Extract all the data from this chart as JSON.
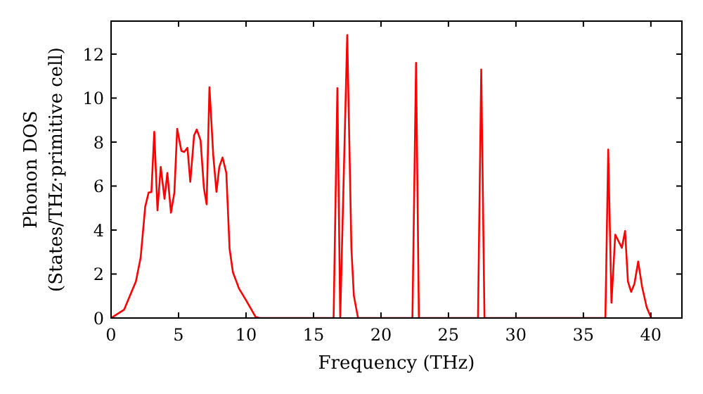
{
  "chart_data": {
    "type": "line",
    "xlabel": "Frequency (THz)",
    "ylabel": "Phonon DOS\n(States/THz·primitive cell)",
    "xlim": [
      0,
      42.3
    ],
    "ylim": [
      0,
      13.5
    ],
    "xticks": [
      0,
      5,
      10,
      15,
      20,
      25,
      30,
      35,
      40
    ],
    "yticks": [
      0,
      2,
      4,
      6,
      8,
      10,
      12
    ],
    "grid": false,
    "marker": "none",
    "line_style": "solid",
    "series": [
      {
        "color": "#ff0000",
        "x": [
          0,
          0.97,
          1.84,
          2.19,
          2.53,
          2.78,
          2.99,
          3.2,
          3.44,
          3.68,
          3.96,
          4.17,
          4.44,
          4.69,
          4.9,
          5.21,
          5.42,
          5.66,
          5.87,
          6.15,
          6.35,
          6.63,
          6.88,
          7.08,
          7.29,
          7.57,
          7.81,
          8.02,
          8.26,
          8.54,
          8.78,
          9.03,
          9.48,
          10,
          10.7,
          11,
          16.49,
          16.77,
          16.98,
          17.5,
          17.81,
          17.99,
          18.3,
          22.33,
          22.6,
          22.81,
          27.19,
          27.43,
          27.67,
          36.63,
          36.84,
          37.08,
          37.36,
          37.85,
          38.09,
          38.3,
          38.54,
          38.78,
          39.06,
          39.34,
          39.69,
          40.03
        ],
        "values": [
          0,
          0.38,
          1.66,
          2.74,
          5.06,
          5.7,
          5.73,
          8.47,
          4.9,
          6.87,
          5.42,
          6.6,
          4.79,
          5.7,
          8.6,
          7.6,
          7.55,
          7.74,
          6.19,
          8.3,
          8.57,
          8.08,
          5.91,
          5.17,
          10.49,
          7.4,
          5.74,
          6.87,
          7.3,
          6.6,
          3.15,
          2.08,
          1.34,
          0.81,
          0.06,
          0,
          0,
          10.45,
          0,
          12.87,
          3.15,
          1.02,
          0,
          0,
          11.6,
          0,
          0,
          11.3,
          0,
          0,
          7.66,
          0.7,
          3.79,
          3.19,
          3.96,
          1.66,
          1.19,
          1.55,
          2.57,
          1.45,
          0.49,
          0
        ]
      }
    ]
  }
}
